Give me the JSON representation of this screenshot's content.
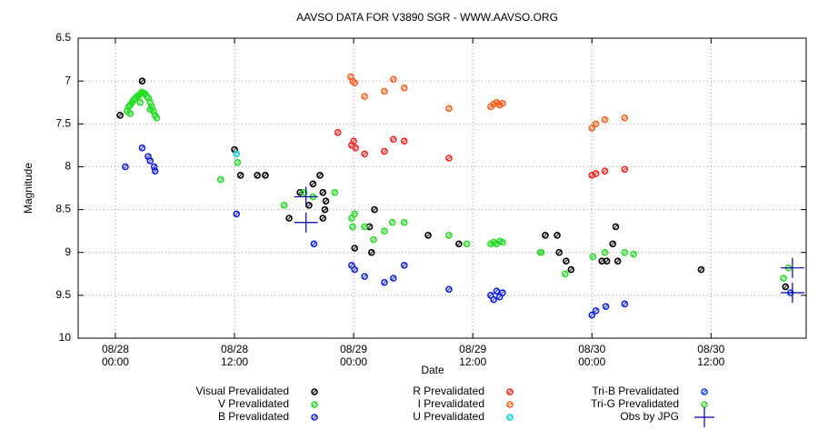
{
  "chart_data": {
    "type": "scatter",
    "title": "AAVSO DATA FOR V3890 SGR - WWW.AAVSO.ORG",
    "x_label": "Date",
    "y_label": "Magnitude",
    "xlim": [
      "08/27 20:15",
      "08/30 21:35"
    ],
    "xticks": [
      {
        "value": "08/28 00:00",
        "label": "08/28\n00:00"
      },
      {
        "value": "08/28 12:00",
        "label": "08/28\n12:00"
      },
      {
        "value": "08/29 00:00",
        "label": "08/29\n00:00"
      },
      {
        "value": "08/29 12:00",
        "label": "08/29\n12:00"
      },
      {
        "value": "08/30 00:00",
        "label": "08/30\n00:00"
      },
      {
        "value": "08/30 12:00",
        "label": "08/30\n12:00"
      }
    ],
    "ylim": [
      6.5,
      10
    ],
    "y_inverted": true,
    "yticks": [
      6.5,
      7,
      7.5,
      8,
      8.5,
      9,
      9.5,
      10
    ],
    "grid": true,
    "series": [
      {
        "name": "Visual Prevalidated",
        "color": "#000000",
        "marker": "circle",
        "x": [
          "08/28 00:28",
          "08/28 02:42",
          "08/28 12:00",
          "08/28 12:36",
          "08/28 14:18",
          "08/28 15:06",
          "08/28 17:30",
          "08/28 18:36",
          "08/28 19:30",
          "08/28 19:54",
          "08/28 20:36",
          "08/28 20:54",
          "08/28 20:54",
          "08/28 21:06",
          "08/28 21:12",
          "08/29 00:06",
          "08/29 01:36",
          "08/29 02:06",
          "08/29 01:48",
          "08/29 07:30",
          "08/29 10:36",
          "08/29 19:18",
          "08/29 20:30",
          "08/29 20:42",
          "08/29 21:24",
          "08/29 21:54",
          "08/30 01:00",
          "08/30 01:30",
          "08/30 02:06",
          "08/30 02:24",
          "08/30 02:36",
          "08/30 11:00",
          "08/30 19:30"
        ],
        "values": [
          7.4,
          7.0,
          7.8,
          8.1,
          8.1,
          8.1,
          8.6,
          8.3,
          8.45,
          8.2,
          8.1,
          8.3,
          8.6,
          8.5,
          8.4,
          8.95,
          8.7,
          8.5,
          9.0,
          8.8,
          8.9,
          8.8,
          8.8,
          9.0,
          9.1,
          9.2,
          9.1,
          9.1,
          8.9,
          8.7,
          9.1,
          9.2,
          9.4
        ]
      },
      {
        "name": "V Prevalidated",
        "color": "#22dd22",
        "marker": "circle",
        "x": [
          "08/28 01:10",
          "08/28 01:20",
          "08/28 01:30",
          "08/28 01:40",
          "08/28 01:50",
          "08/28 02:00",
          "08/28 02:10",
          "08/28 02:20",
          "08/28 02:30",
          "08/28 02:40",
          "08/28 02:50",
          "08/28 03:00",
          "08/28 03:10",
          "08/28 03:20",
          "08/28 03:30",
          "08/28 03:40",
          "08/28 03:50",
          "08/28 04:00",
          "08/28 04:10",
          "08/28 01:30",
          "08/28 02:30",
          "08/28 03:30",
          "08/28 10:36",
          "08/28 12:18",
          "08/28 17:00",
          "08/28 19:00",
          "08/28 19:54",
          "08/28 22:06",
          "08/28 23:48",
          "08/28 23:54",
          "08/29 00:06",
          "08/29 01:06",
          "08/29 02:00",
          "08/29 03:06",
          "08/29 03:54",
          "08/29 05:06",
          "08/29 09:36",
          "08/29 11:24",
          "08/29 13:48",
          "08/29 14:06",
          "08/29 14:24",
          "08/29 14:42",
          "08/29 15:00",
          "08/29 18:54",
          "08/29 21:18",
          "08/30 00:06",
          "08/30 01:18",
          "08/30 03:18",
          "08/30 04:12",
          "08/30 19:18"
        ],
        "values": [
          7.35,
          7.3,
          7.28,
          7.25,
          7.22,
          7.2,
          7.18,
          7.17,
          7.15,
          7.13,
          7.14,
          7.15,
          7.18,
          7.2,
          7.25,
          7.3,
          7.35,
          7.4,
          7.43,
          7.38,
          7.25,
          7.33,
          8.15,
          7.95,
          8.45,
          8.3,
          8.35,
          8.3,
          8.6,
          8.7,
          8.55,
          8.7,
          8.85,
          8.75,
          8.65,
          8.65,
          8.8,
          8.9,
          8.9,
          8.88,
          8.9,
          8.87,
          8.88,
          9.0,
          9.25,
          9.05,
          9.0,
          9.0,
          9.02,
          9.3
        ]
      },
      {
        "name": "B Prevalidated",
        "color": "#1020e0",
        "marker": "circle",
        "x": [
          "08/28 01:00",
          "08/28 02:42",
          "08/28 03:18",
          "08/28 03:30",
          "08/28 03:54",
          "08/28 04:00",
          "08/28 12:12",
          "08/28 20:00",
          "08/28 23:48",
          "08/29 00:06",
          "08/29 01:06",
          "08/29 03:06",
          "08/29 04:00",
          "08/29 05:06",
          "08/29 09:36",
          "08/29 13:48",
          "08/29 14:06",
          "08/29 14:24",
          "08/29 14:42",
          "08/29 15:00",
          "08/30 00:00",
          "08/30 00:24",
          "08/30 01:24",
          "08/30 03:18"
        ],
        "values": [
          8.0,
          7.78,
          7.88,
          7.93,
          8.0,
          8.05,
          8.55,
          8.9,
          9.15,
          9.2,
          9.28,
          9.35,
          9.3,
          9.15,
          9.43,
          9.5,
          9.55,
          9.45,
          9.52,
          9.47,
          9.73,
          9.68,
          9.63,
          9.6
        ]
      },
      {
        "name": "R Prevalidated",
        "color": "#ff2020",
        "marker": "circle",
        "x": [
          "08/28 22:24",
          "08/28 23:48",
          "08/29 00:00",
          "08/29 00:12",
          "08/29 01:06",
          "08/29 03:06",
          "08/29 04:00",
          "08/29 05:06",
          "08/29 09:36",
          "08/30 00:00",
          "08/30 00:24",
          "08/30 01:18",
          "08/30 03:18"
        ],
        "values": [
          7.6,
          7.75,
          7.7,
          7.78,
          7.85,
          7.82,
          7.68,
          7.7,
          7.9,
          8.1,
          8.08,
          8.05,
          8.03
        ]
      },
      {
        "name": "I Prevalidated",
        "color": "#ff6020",
        "marker": "circle",
        "x": [
          "08/28 23:42",
          "08/28 23:54",
          "08/29 00:06",
          "08/29 01:06",
          "08/29 03:06",
          "08/29 04:00",
          "08/29 05:06",
          "08/29 09:36",
          "08/29 13:48",
          "08/29 14:06",
          "08/29 14:24",
          "08/29 14:42",
          "08/29 15:00",
          "08/30 00:00",
          "08/30 00:24",
          "08/30 01:18",
          "08/30 03:18"
        ],
        "values": [
          6.95,
          7.0,
          7.02,
          7.18,
          7.12,
          6.98,
          7.08,
          7.32,
          7.3,
          7.27,
          7.25,
          7.28,
          7.26,
          7.55,
          7.5,
          7.45,
          7.43
        ]
      },
      {
        "name": "U Prevalidated",
        "color": "#00d8d8",
        "marker": "circle",
        "x": [
          "08/28 12:12"
        ],
        "values": [
          7.85
        ]
      },
      {
        "name": "Tri-B Prevalidated",
        "color": "#1040e0",
        "marker": "circle",
        "x": [
          "08/30 20:00"
        ],
        "values": [
          9.47
        ]
      },
      {
        "name": "Tri-G Prevalidated",
        "color": "#40d040",
        "marker": "circle",
        "x": [
          "08/29 18:48",
          "08/30 19:48"
        ],
        "values": [
          9.0,
          9.18
        ]
      },
      {
        "name": "Obs by JPG",
        "color": "#0000a0",
        "marker": "cross",
        "x": [
          "08/28 19:12",
          "08/28 19:12",
          "08/30 20:12",
          "08/30 20:12"
        ],
        "values": [
          8.35,
          8.65,
          9.18,
          9.47
        ]
      }
    ]
  }
}
